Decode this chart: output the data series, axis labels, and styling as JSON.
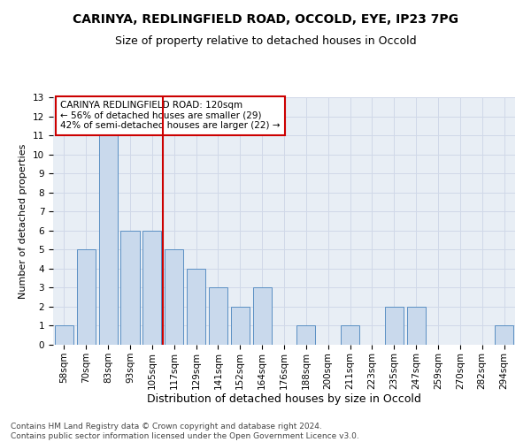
{
  "title": "CARINYA, REDLINGFIELD ROAD, OCCOLD, EYE, IP23 7PG",
  "subtitle": "Size of property relative to detached houses in Occold",
  "xlabel": "Distribution of detached houses by size in Occold",
  "ylabel": "Number of detached properties",
  "categories": [
    "58sqm",
    "70sqm",
    "83sqm",
    "93sqm",
    "105sqm",
    "117sqm",
    "129sqm",
    "141sqm",
    "152sqm",
    "164sqm",
    "176sqm",
    "188sqm",
    "200sqm",
    "211sqm",
    "223sqm",
    "235sqm",
    "247sqm",
    "259sqm",
    "270sqm",
    "282sqm",
    "294sqm"
  ],
  "values": [
    1,
    5,
    11,
    6,
    6,
    5,
    4,
    3,
    2,
    3,
    0,
    1,
    0,
    1,
    0,
    2,
    2,
    0,
    0,
    0,
    1
  ],
  "bar_color": "#c9d9ec",
  "bar_edge_color": "#5a8fc3",
  "highlight_line_color": "#cc0000",
  "ylim": [
    0,
    13
  ],
  "yticks": [
    0,
    1,
    2,
    3,
    4,
    5,
    6,
    7,
    8,
    9,
    10,
    11,
    12,
    13
  ],
  "annotation_title": "CARINYA REDLINGFIELD ROAD: 120sqm",
  "annotation_line1": "← 56% of detached houses are smaller (29)",
  "annotation_line2": "42% of semi-detached houses are larger (22) →",
  "annotation_box_color": "#ffffff",
  "annotation_box_edge": "#cc0000",
  "footer": "Contains HM Land Registry data © Crown copyright and database right 2024.\nContains public sector information licensed under the Open Government Licence v3.0.",
  "title_fontsize": 10,
  "subtitle_fontsize": 9,
  "xlabel_fontsize": 9,
  "ylabel_fontsize": 8,
  "tick_fontsize": 7.5,
  "annotation_fontsize": 7.5,
  "footer_fontsize": 6.5,
  "grid_color": "#d0d8e8",
  "background_color": "#e8eef5"
}
